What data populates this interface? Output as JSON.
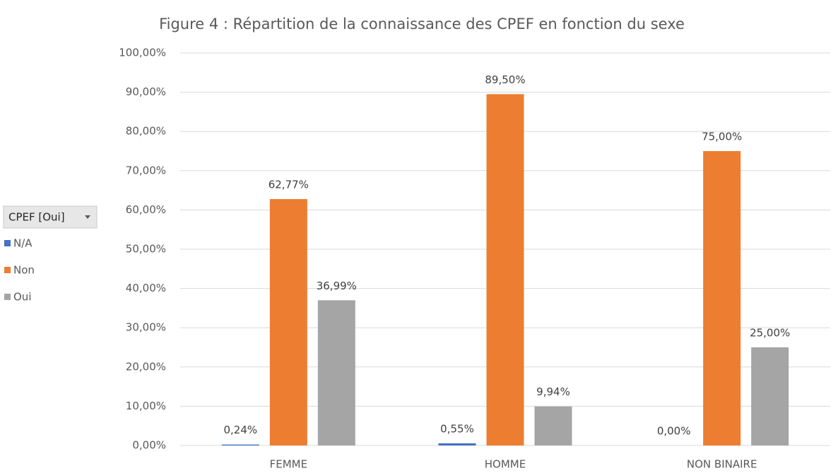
{
  "chart_data": {
    "type": "bar",
    "title": "Figure 4 : Répartition de la connaissance des CPEF en fonction du sexe",
    "legend_title": "CPEF [Oui]",
    "legend": "left",
    "grid": true,
    "categories": [
      "FEMME",
      "HOMME",
      "NON BINAIRE"
    ],
    "series": [
      {
        "name": "N/A",
        "color": "#4472c4",
        "values": [
          0.24,
          0.55,
          0
        ],
        "value_labels": [
          "0,24%",
          "0,55%",
          "0,00%"
        ]
      },
      {
        "name": "Non",
        "color": "#ed7d31",
        "values": [
          62.77,
          89.5,
          75
        ],
        "value_labels": [
          "62,77%",
          "89,50%",
          "75,00%"
        ]
      },
      {
        "name": "Oui",
        "color": "#a5a5a5",
        "values": [
          36.99,
          9.94,
          25
        ],
        "value_labels": [
          "36,99%",
          "9,94%",
          "25,00%"
        ]
      }
    ],
    "ylim": [
      0,
      100
    ],
    "yticks": [
      {
        "value": 0,
        "label": "0,00%"
      },
      {
        "value": 10,
        "label": "10,00%"
      },
      {
        "value": 20,
        "label": "20,00%"
      },
      {
        "value": 30,
        "label": "30,00%"
      },
      {
        "value": 40,
        "label": "40,00%"
      },
      {
        "value": 50,
        "label": "50,00%"
      },
      {
        "value": 60,
        "label": "60,00%"
      },
      {
        "value": 70,
        "label": "70,00%"
      },
      {
        "value": 80,
        "label": "80,00%"
      },
      {
        "value": 90,
        "label": "90,00%"
      },
      {
        "value": 100,
        "label": "100,00%"
      }
    ]
  }
}
